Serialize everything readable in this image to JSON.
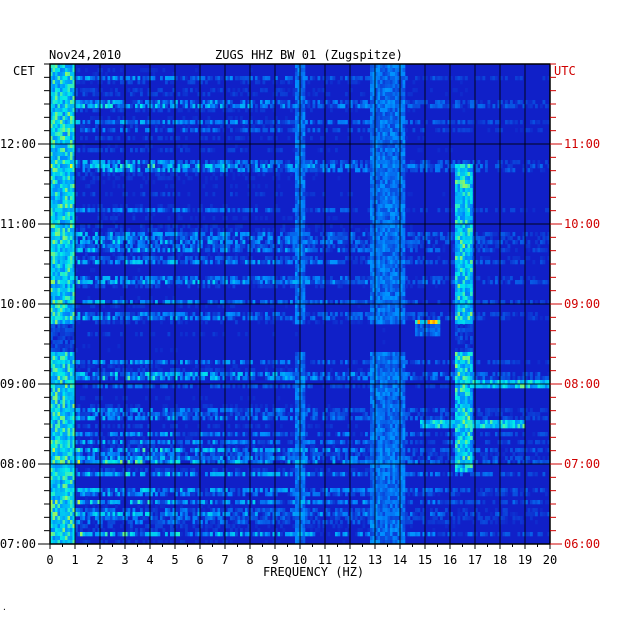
{
  "header": {
    "date": "Nov24,2010",
    "station": "ZUGS HHZ BW 01 (Zugspitze)"
  },
  "axes": {
    "left_timezone": "CET",
    "right_timezone": "UTC"
  },
  "colors": {
    "background_blue": "#1020c8",
    "grid": "#000000",
    "utc_text": "#d00000"
  },
  "corner_mark": "·",
  "chart_data": {
    "type": "heatmap",
    "title": "ZUGS HHZ BW 01 (Zugspitze)",
    "subtitle": "Nov24,2010",
    "xlabel": "FREQUENCY (HZ)",
    "xlim": [
      0,
      20
    ],
    "x_ticks": [
      "0",
      "1",
      "2",
      "3",
      "4",
      "5",
      "6",
      "7",
      "8",
      "9",
      "10",
      "11",
      "12",
      "13",
      "14",
      "15",
      "16",
      "17",
      "18",
      "19",
      "20"
    ],
    "y_ticks_left_cet": [
      "07:00",
      "08:00",
      "09:00",
      "10:00",
      "11:00",
      "12:00"
    ],
    "y_ticks_right_utc": [
      "06:00",
      "07:00",
      "08:00",
      "09:00",
      "10:00",
      "11:00"
    ],
    "ylim_hours_cet": [
      7.0,
      13.0
    ],
    "ylim_hours_utc": [
      6.0,
      12.0
    ],
    "grid": true,
    "features": [
      {
        "name": "low-frequency energy",
        "freq_range_hz": [
          0,
          1
        ],
        "time_range_cet": [
          "07:00",
          "13:00"
        ],
        "intensity": "high"
      },
      {
        "name": "10 Hz line",
        "freq_range_hz": [
          9.8,
          10.2
        ],
        "time_range_cet": [
          "07:00",
          "13:00"
        ],
        "intensity": "medium"
      },
      {
        "name": "band around 13.5 Hz",
        "freq_range_hz": [
          12.8,
          14.2
        ],
        "time_range_cet": [
          "07:00",
          "13:00"
        ],
        "intensity": "medium"
      },
      {
        "name": "burst near 15 Hz",
        "freq_range_hz": [
          14.6,
          15.6
        ],
        "time_range_cet": [
          "09:36",
          "09:48"
        ],
        "intensity": "very high"
      },
      {
        "name": "16.5 Hz patches",
        "freq_range_hz": [
          16.2,
          16.9
        ],
        "time_range_cet": [
          "07:55",
          "11:45"
        ],
        "intensity": "high"
      },
      {
        "name": "horizontal line 17-20 Hz",
        "freq_range_hz": [
          16.8,
          20
        ],
        "time_range_cet": [
          "09:00",
          "09:00"
        ],
        "intensity": "high"
      },
      {
        "name": "horizontal line 15-19 Hz",
        "freq_range_hz": [
          14.8,
          19
        ],
        "time_range_cet": [
          "08:30",
          "08:30"
        ],
        "intensity": "high"
      },
      {
        "name": "quiet band",
        "freq_range_hz": [
          0,
          20
        ],
        "time_range_cet": [
          "09:25",
          "09:45"
        ],
        "intensity": "low"
      }
    ]
  }
}
